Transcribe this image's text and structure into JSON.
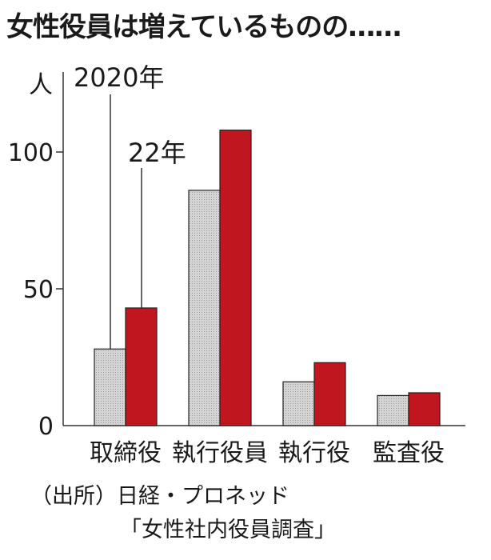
{
  "chart_data": {
    "type": "bar",
    "title": "女性役員は増えているものの……",
    "ylabel": "人",
    "yticks": [
      0,
      50,
      100
    ],
    "ylim": [
      0,
      112
    ],
    "categories": [
      "取締役",
      "執行役員",
      "執行役",
      "監査役"
    ],
    "series": [
      {
        "name": "2020年",
        "values": [
          28,
          86,
          16,
          11
        ],
        "color": "#d2d2d2"
      },
      {
        "name": "22年",
        "values": [
          43,
          108,
          23,
          12
        ],
        "color": "#c0161f"
      }
    ],
    "grid": false,
    "legend": "callout-lines"
  },
  "source": {
    "line1": "（出所）日経・プロネッド",
    "line2": "「女性社内役員調査」"
  }
}
